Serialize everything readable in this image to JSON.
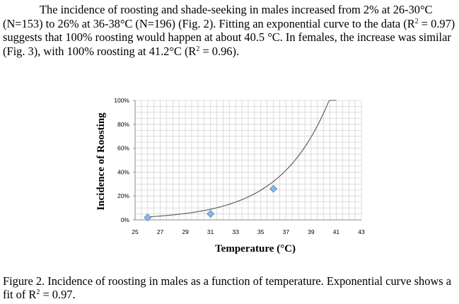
{
  "paragraph": {
    "part1": "The incidence of roosting and shade-seeking in males increased from 2% at 26-30°C (N=153) to 26% at 36-38°C (N=196) (Fig. 2). Fitting an exponential curve to the data (R",
    "part2": " = 0.97) suggests that 100% roosting would happen at about 40.5 °C. In females, the increase was similar (Fig. 3), with 100% roosting at 41.2°C (R",
    "part3": " = 0.96).",
    "sup": "2"
  },
  "caption": {
    "part1": "Figure 2. Incidence of roosting in males as a function of temperature. Exponential curve shows a fit of R",
    "part2": " = 0.97.",
    "sup": "2"
  },
  "chart_data": {
    "type": "scatter",
    "xlabel": "Temperature (°C)",
    "ylabel": "Incidence of Roosting",
    "xlim": [
      25,
      43
    ],
    "ylim": [
      0,
      1.0
    ],
    "x_ticks": [
      "25",
      "27",
      "29",
      "31",
      "33",
      "35",
      "37",
      "39",
      "41",
      "43"
    ],
    "y_ticks": [
      "0%",
      "20%",
      "40%",
      "60%",
      "80%",
      "100%"
    ],
    "grid": true,
    "points": [
      {
        "x": 26.0,
        "y": 0.02
      },
      {
        "x": 31.0,
        "y": 0.05
      },
      {
        "x": 36.0,
        "y": 0.26
      }
    ],
    "trendline": {
      "type": "exponential",
      "a": 3.16e-05,
      "b": 0.2563,
      "x_range": [
        26,
        41
      ]
    },
    "marker_color": "#8fb4e3",
    "marker_edge": "#5b86c0",
    "curve_color": "#555555"
  }
}
